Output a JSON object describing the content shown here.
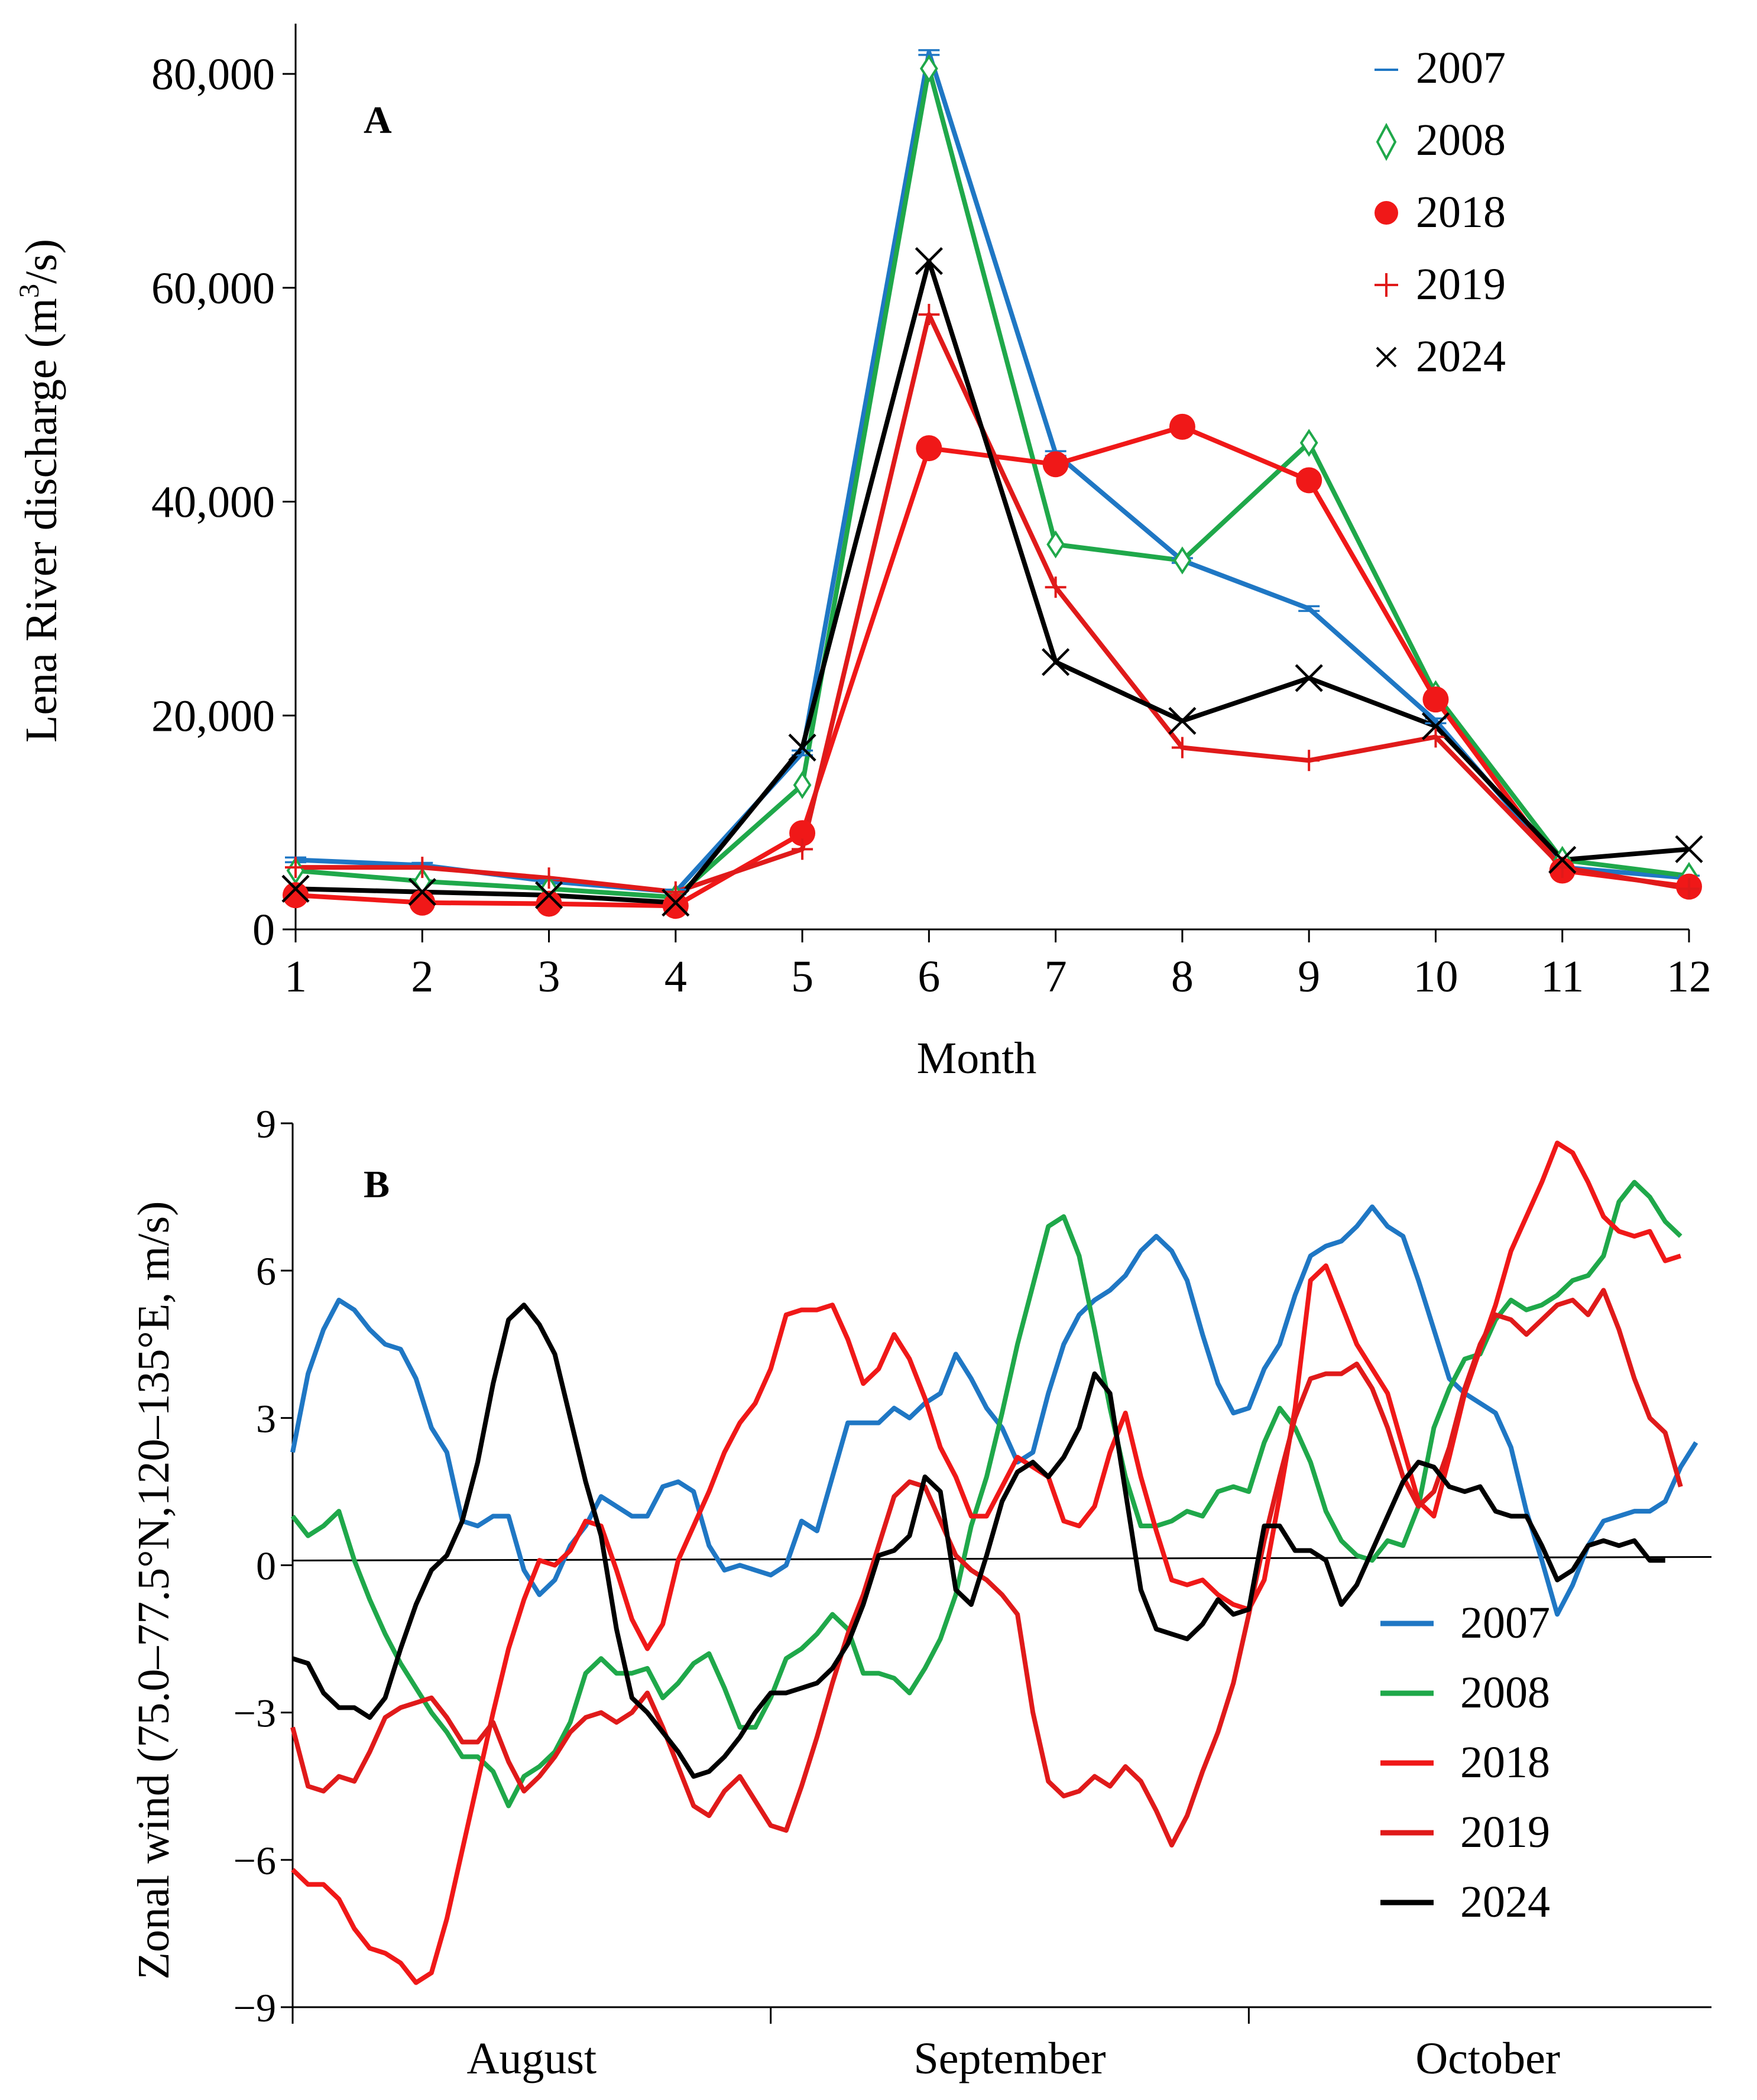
{
  "colors": {
    "2007": "#1f77c4",
    "2008": "#1fa84a",
    "2018": "#f01818",
    "2019": "#e01a1a",
    "2024": "#000000"
  },
  "chart_data": [
    {
      "type": "line",
      "panel_label": "A",
      "title": "",
      "xlabel": "Month",
      "ylabel_main": "Lena River discharge (m",
      "ylabel_sup": "3",
      "ylabel_end": "/s)",
      "xlim": [
        1,
        12
      ],
      "ylim": [
        0,
        85000
      ],
      "x_ticks": [
        "1",
        "2",
        "3",
        "4",
        "5",
        "6",
        "7",
        "8",
        "9",
        "10",
        "11",
        "12"
      ],
      "y_ticks": [
        {
          "value": 0,
          "label": "0"
        },
        {
          "value": 20000,
          "label": "20,000"
        },
        {
          "value": 40000,
          "label": "40,000"
        },
        {
          "value": 60000,
          "label": "60,000"
        },
        {
          "value": 80000,
          "label": "80,000"
        }
      ],
      "legend_position": "top-right",
      "categories": [
        1,
        2,
        3,
        4,
        5,
        6,
        7,
        8,
        9,
        10,
        11,
        12
      ],
      "series": [
        {
          "name": "2007",
          "marker": "dash",
          "marker_label": "–",
          "values": [
            6500,
            6000,
            4500,
            3500,
            16500,
            82000,
            44500,
            34500,
            30000,
            19500,
            5800,
            4800
          ]
        },
        {
          "name": "2008",
          "marker": "diamond",
          "marker_label": "◊",
          "values": [
            5500,
            4500,
            3800,
            3000,
            13500,
            80500,
            36000,
            34500,
            45500,
            22000,
            6500,
            5000
          ]
        },
        {
          "name": "2018",
          "marker": "circle",
          "marker_label": "●",
          "values": [
            3200,
            2500,
            2400,
            2200,
            9000,
            45000,
            43500,
            47000,
            42000,
            21500,
            5500,
            4000
          ]
        },
        {
          "name": "2019",
          "marker": "plus",
          "marker_label": "+",
          "values": [
            5800,
            5800,
            4800,
            3500,
            7500,
            57500,
            32000,
            17000,
            15800,
            18000,
            5800,
            3800
          ]
        },
        {
          "name": "2024",
          "marker": "cross",
          "marker_label": "×",
          "values": [
            3800,
            3500,
            3200,
            2500,
            17000,
            62500,
            25000,
            19500,
            23500,
            19000,
            6500,
            7500
          ]
        }
      ]
    },
    {
      "type": "line",
      "panel_label": "B",
      "title": "",
      "xlabel": "",
      "ylabel": "Zonal wind (75.0–77.5°N,120–135°E, m/s)",
      "xlim": [
        0,
        92
      ],
      "ylim": [
        -9,
        9
      ],
      "y_ticks": [
        {
          "value": 9,
          "label": "9"
        },
        {
          "value": 6,
          "label": "6"
        },
        {
          "value": 3,
          "label": "3"
        },
        {
          "value": 0,
          "label": "0"
        },
        {
          "value": -3,
          "label": "−3"
        },
        {
          "value": -6,
          "label": "−6"
        },
        {
          "value": -9,
          "label": "−9"
        }
      ],
      "x_month_labels": [
        {
          "label": "August",
          "center_day": 15.5
        },
        {
          "label": "September",
          "center_day": 46.5
        },
        {
          "label": "October",
          "center_day": 77.5
        }
      ],
      "x_month_boundaries": [
        31,
        62
      ],
      "zero_line": true,
      "legend_position": "bottom-right",
      "series": [
        {
          "name": "2007",
          "values": [
            2.3,
            3.9,
            4.8,
            5.4,
            5.2,
            4.8,
            4.5,
            4.4,
            3.8,
            2.8,
            2.3,
            0.9,
            0.8,
            1.0,
            1.0,
            -0.1,
            -0.6,
            -0.3,
            0.4,
            0.8,
            1.4,
            1.2,
            1.0,
            1.0,
            1.6,
            1.7,
            1.5,
            0.4,
            -0.1,
            0.0,
            -0.1,
            -0.2,
            0.0,
            0.9,
            0.7,
            1.8,
            2.9,
            2.9,
            2.9,
            3.2,
            3.0,
            3.3,
            3.5,
            4.3,
            3.8,
            3.2,
            2.8,
            2.1,
            2.3,
            3.5,
            4.5,
            5.1,
            5.4,
            5.6,
            5.9,
            6.4,
            6.7,
            6.4,
            5.8,
            4.7,
            3.7,
            3.1,
            3.2,
            4.0,
            4.5,
            5.5,
            6.3,
            6.5,
            6.6,
            6.9,
            7.3,
            6.9,
            6.7,
            5.8,
            4.8,
            3.8,
            3.5,
            3.3,
            3.1,
            2.4,
            1.1,
            0.1,
            -1.0,
            -0.4,
            0.4,
            0.9,
            1.0,
            1.1,
            1.1,
            1.3,
            2.0,
            2.5
          ]
        },
        {
          "name": "2008",
          "values": [
            1.0,
            0.6,
            0.8,
            1.1,
            0.1,
            -0.7,
            -1.4,
            -2.0,
            -2.5,
            -3.0,
            -3.4,
            -3.9,
            -3.9,
            -4.2,
            -4.9,
            -4.3,
            -4.1,
            -3.8,
            -3.2,
            -2.2,
            -1.9,
            -2.2,
            -2.2,
            -2.1,
            -2.7,
            -2.4,
            -2.0,
            -1.8,
            -2.5,
            -3.3,
            -3.3,
            -2.7,
            -1.9,
            -1.7,
            -1.4,
            -1.0,
            -1.3,
            -2.2,
            -2.2,
            -2.3,
            -2.6,
            -2.1,
            -1.5,
            -0.6,
            0.8,
            1.8,
            3.1,
            4.5,
            5.7,
            6.9,
            7.1,
            6.3,
            4.8,
            3.2,
            1.8,
            0.8,
            0.8,
            0.9,
            1.1,
            1.0,
            1.5,
            1.6,
            1.5,
            2.5,
            3.2,
            2.8,
            2.1,
            1.1,
            0.5,
            0.2,
            0.1,
            0.5,
            0.4,
            1.2,
            2.8,
            3.6,
            4.2,
            4.3,
            5.0,
            5.4,
            5.2,
            5.3,
            5.5,
            5.8,
            5.9,
            6.3,
            7.4,
            7.8,
            7.5,
            7.0,
            6.7
          ]
        },
        {
          "name": "2018",
          "values": [
            -6.2,
            -6.5,
            -6.5,
            -6.8,
            -7.4,
            -7.8,
            -7.9,
            -8.1,
            -8.5,
            -8.3,
            -7.2,
            -5.8,
            -4.4,
            -3.0,
            -1.7,
            -0.7,
            0.1,
            0.0,
            0.3,
            0.9,
            0.8,
            -0.1,
            -1.1,
            -1.7,
            -1.2,
            0.1,
            0.8,
            1.5,
            2.3,
            2.9,
            3.3,
            4.0,
            5.1,
            5.2,
            5.2,
            5.3,
            4.6,
            3.7,
            4.0,
            4.7,
            4.2,
            3.4,
            2.4,
            1.8,
            1.0,
            1.0,
            1.6,
            2.2,
            2.0,
            1.8,
            0.9,
            0.8,
            1.2,
            2.3,
            3.1,
            1.8,
            0.7,
            -0.3,
            -0.4,
            -0.3,
            -0.6,
            -0.8,
            -0.9,
            -0.3,
            1.4,
            3.2,
            5.8,
            6.1,
            5.3,
            4.5,
            4.0,
            3.5,
            2.4,
            1.3,
            1.0,
            2.2,
            3.5,
            4.4,
            5.3,
            6.4,
            7.1,
            7.8,
            8.6,
            8.4,
            7.8,
            7.1,
            6.8,
            6.7,
            6.8,
            6.2,
            6.3
          ]
        },
        {
          "name": "2019",
          "values": [
            -3.3,
            -4.5,
            -4.6,
            -4.3,
            -4.4,
            -3.8,
            -3.1,
            -2.9,
            -2.8,
            -2.7,
            -3.1,
            -3.6,
            -3.6,
            -3.2,
            -4.0,
            -4.6,
            -4.3,
            -3.9,
            -3.4,
            -3.1,
            -3.0,
            -3.2,
            -3.0,
            -2.6,
            -3.3,
            -4.1,
            -4.9,
            -5.1,
            -4.6,
            -4.3,
            -4.8,
            -5.3,
            -5.4,
            -4.5,
            -3.5,
            -2.4,
            -1.4,
            -0.6,
            0.4,
            1.4,
            1.7,
            1.6,
            0.9,
            0.2,
            -0.1,
            -0.3,
            -0.6,
            -1.0,
            -3.0,
            -4.4,
            -4.7,
            -4.6,
            -4.3,
            -4.5,
            -4.1,
            -4.4,
            -5.0,
            -5.7,
            -5.1,
            -4.2,
            -3.4,
            -2.4,
            -1.0,
            0.5,
            1.8,
            3.0,
            3.8,
            3.9,
            3.9,
            4.1,
            3.6,
            2.8,
            1.8,
            1.2,
            1.5,
            2.4,
            3.6,
            4.5,
            5.1,
            5.0,
            4.7,
            5.0,
            5.3,
            5.4,
            5.1,
            5.6,
            4.8,
            3.8,
            3.0,
            2.7,
            1.6
          ]
        },
        {
          "name": "2024",
          "values": [
            -1.9,
            -2.0,
            -2.6,
            -2.9,
            -2.9,
            -3.1,
            -2.7,
            -1.7,
            -0.8,
            -0.1,
            0.2,
            0.9,
            2.1,
            3.7,
            5.0,
            5.3,
            4.9,
            4.3,
            3.0,
            1.7,
            0.6,
            -1.3,
            -2.7,
            -3.0,
            -3.4,
            -3.8,
            -4.3,
            -4.2,
            -3.9,
            -3.5,
            -3.0,
            -2.6,
            -2.6,
            -2.5,
            -2.4,
            -2.1,
            -1.6,
            -0.8,
            0.2,
            0.3,
            0.6,
            1.8,
            1.5,
            -0.5,
            -0.8,
            0.2,
            1.3,
            1.9,
            2.1,
            1.8,
            2.2,
            2.8,
            3.9,
            3.5,
            1.5,
            -0.5,
            -1.3,
            -1.4,
            -1.5,
            -1.2,
            -0.7,
            -1.0,
            -0.9,
            0.8,
            0.8,
            0.3,
            0.3,
            0.1,
            -0.8,
            -0.4,
            0.3,
            1.0,
            1.7,
            2.1,
            2.0,
            1.6,
            1.5,
            1.6,
            1.1,
            1.0,
            1.0,
            0.4,
            -0.3,
            -0.1,
            0.4,
            0.5,
            0.4,
            0.5,
            0.1,
            0.1
          ]
        }
      ]
    }
  ]
}
